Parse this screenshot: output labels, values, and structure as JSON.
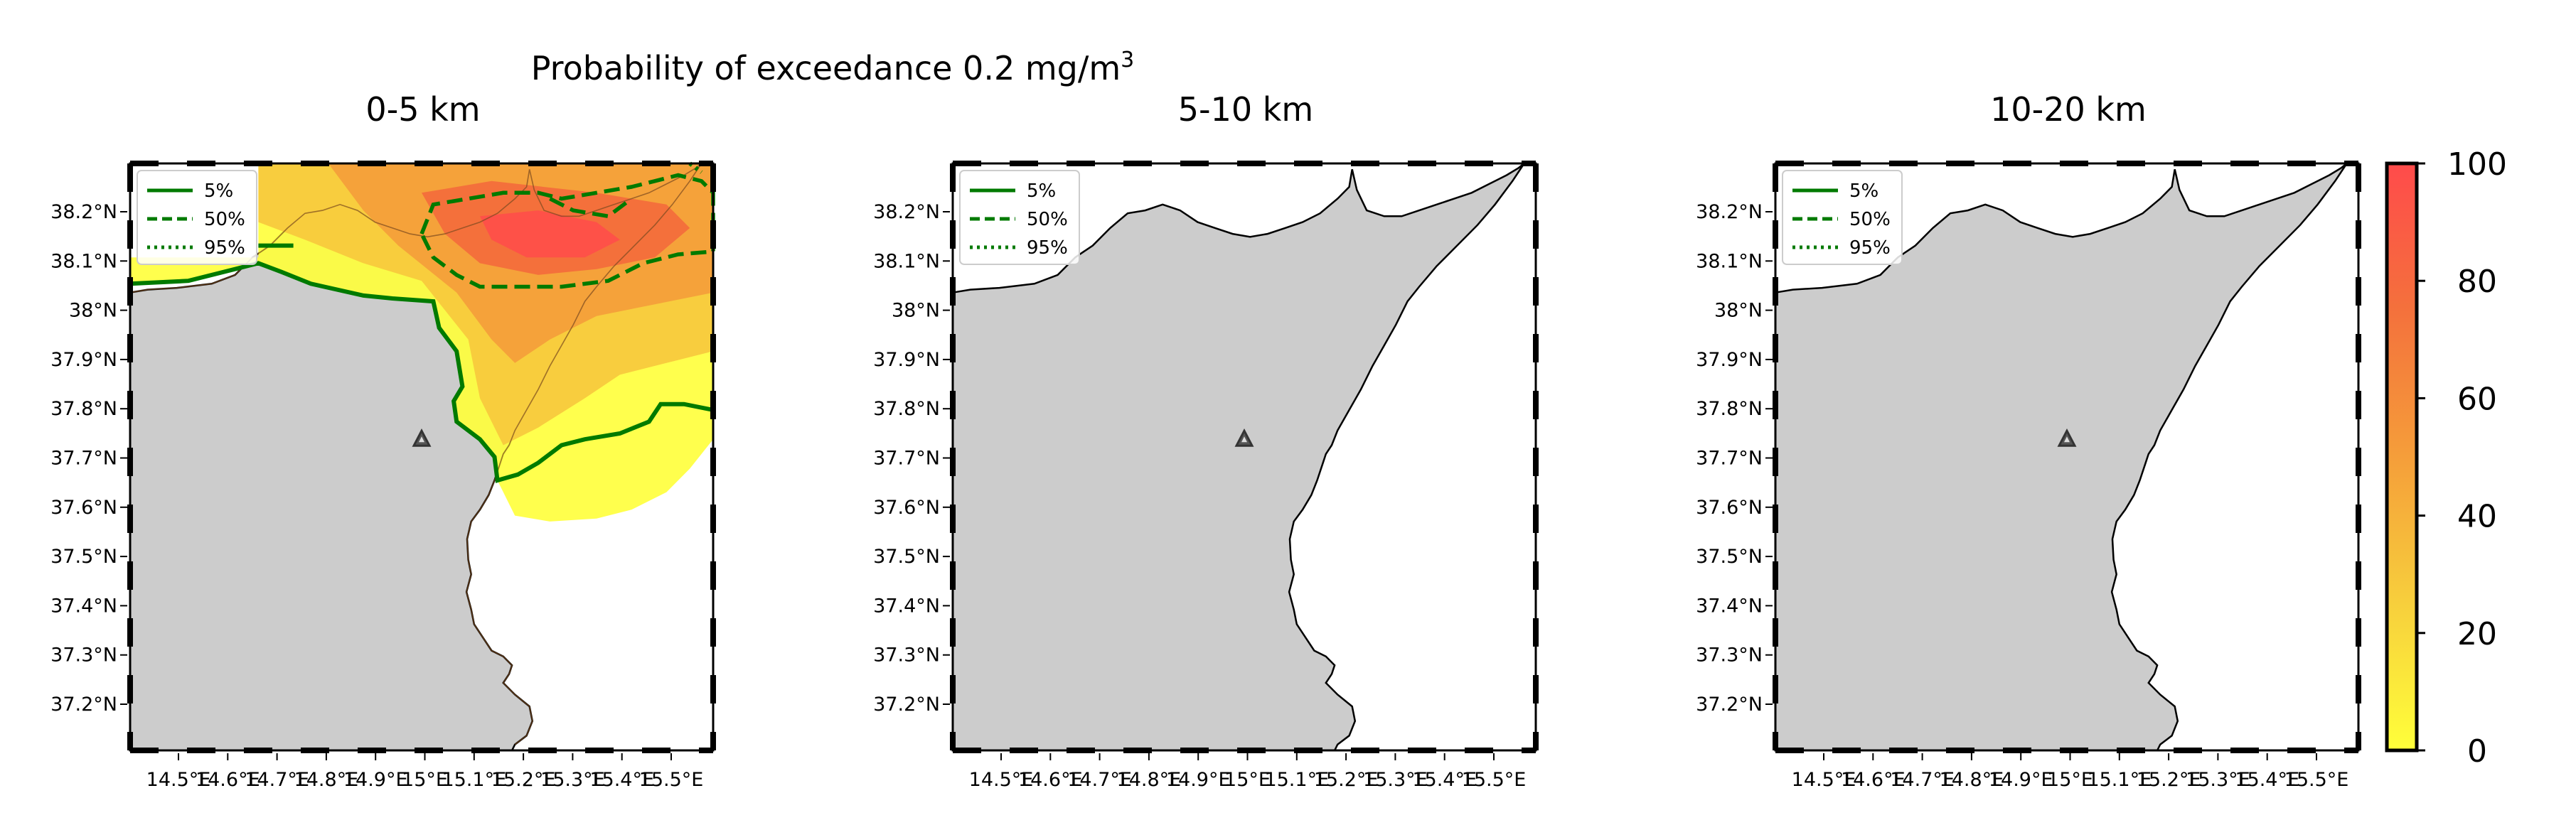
{
  "figure": {
    "suptitle_prefix": "Probability of exceedance 0.2 mg/m",
    "suptitle_sup": "3"
  },
  "panels": [
    {
      "title": "0-5 km",
      "show_plume": true
    },
    {
      "title": "5-10 km",
      "show_plume": false
    },
    {
      "title": "10-20 km",
      "show_plume": false
    }
  ],
  "axes": {
    "lon_ticks": [
      "14.5°E",
      "14.6°E",
      "14.7°E",
      "14.8°E",
      "14.9°E",
      "15°E",
      "15.1°E",
      "15.2°E",
      "15.3°E",
      "15.4°E",
      "15.5°E"
    ],
    "lat_ticks": [
      "38.2°N",
      "38.1°N",
      "38°N",
      "37.9°N",
      "37.8°N",
      "37.7°N",
      "37.6°N",
      "37.5°N",
      "37.4°N",
      "37.3°N",
      "37.2°N"
    ],
    "lon_range": [
      14.5,
      15.5
    ],
    "lat_range": [
      37.1,
      38.3
    ]
  },
  "legend": {
    "entries": [
      {
        "label": "5%",
        "style": "solid"
      },
      {
        "label": "50%",
        "style": "dashed"
      },
      {
        "label": "95%",
        "style": "dotted"
      }
    ],
    "placement": "top-left",
    "contour_color": "#007a00"
  },
  "colorbar": {
    "ticks": [
      "100",
      "80",
      "60",
      "40",
      "20",
      "0"
    ],
    "range": [
      0,
      100
    ],
    "colors": [
      "#ffff3a",
      "#f7c43c",
      "#f59a3a",
      "#f46a3c",
      "#ff4b4b"
    ]
  },
  "map": {
    "land_color": "#cccccc",
    "sea_color": "#ffffff",
    "volcano_marker": "volcano-triangle-icon",
    "volcano_location": [
      15.0,
      37.75
    ]
  }
}
